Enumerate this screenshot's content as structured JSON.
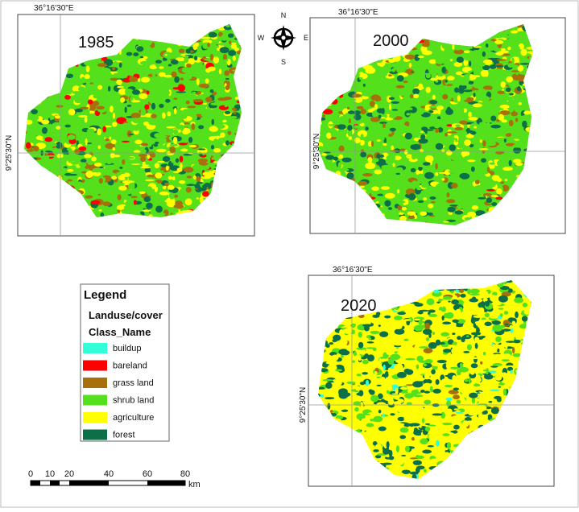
{
  "maps": [
    {
      "year": "1985",
      "lon_label": "36°16'30\"E",
      "lat_label": "9°25'30\"N"
    },
    {
      "year": "2000",
      "lon_label": "36°16'30\"E",
      "lat_label": "9°25'30\"N"
    },
    {
      "year": "2020",
      "lon_label": "36°16'30\"E",
      "lat_label": "9°25'30\"N"
    }
  ],
  "compass": {
    "north": "N",
    "south": "S",
    "east": "E",
    "west": "W"
  },
  "legend": {
    "title": "Legend",
    "subtitle": "Landuse/cover",
    "field": "Class_Name",
    "items": [
      {
        "label": "buildup",
        "color": "#33ffd6"
      },
      {
        "label": "bareland",
        "color": "#ff0000"
      },
      {
        "label": "grass land",
        "color": "#a8700a"
      },
      {
        "label": "shrub land",
        "color": "#55e01c"
      },
      {
        "label": "agriculture",
        "color": "#ffff00"
      },
      {
        "label": "forest",
        "color": "#0b7048"
      }
    ]
  },
  "scale_bar": {
    "labels": [
      "0",
      "10",
      "20",
      "40",
      "60",
      "80"
    ],
    "unit": "km"
  }
}
